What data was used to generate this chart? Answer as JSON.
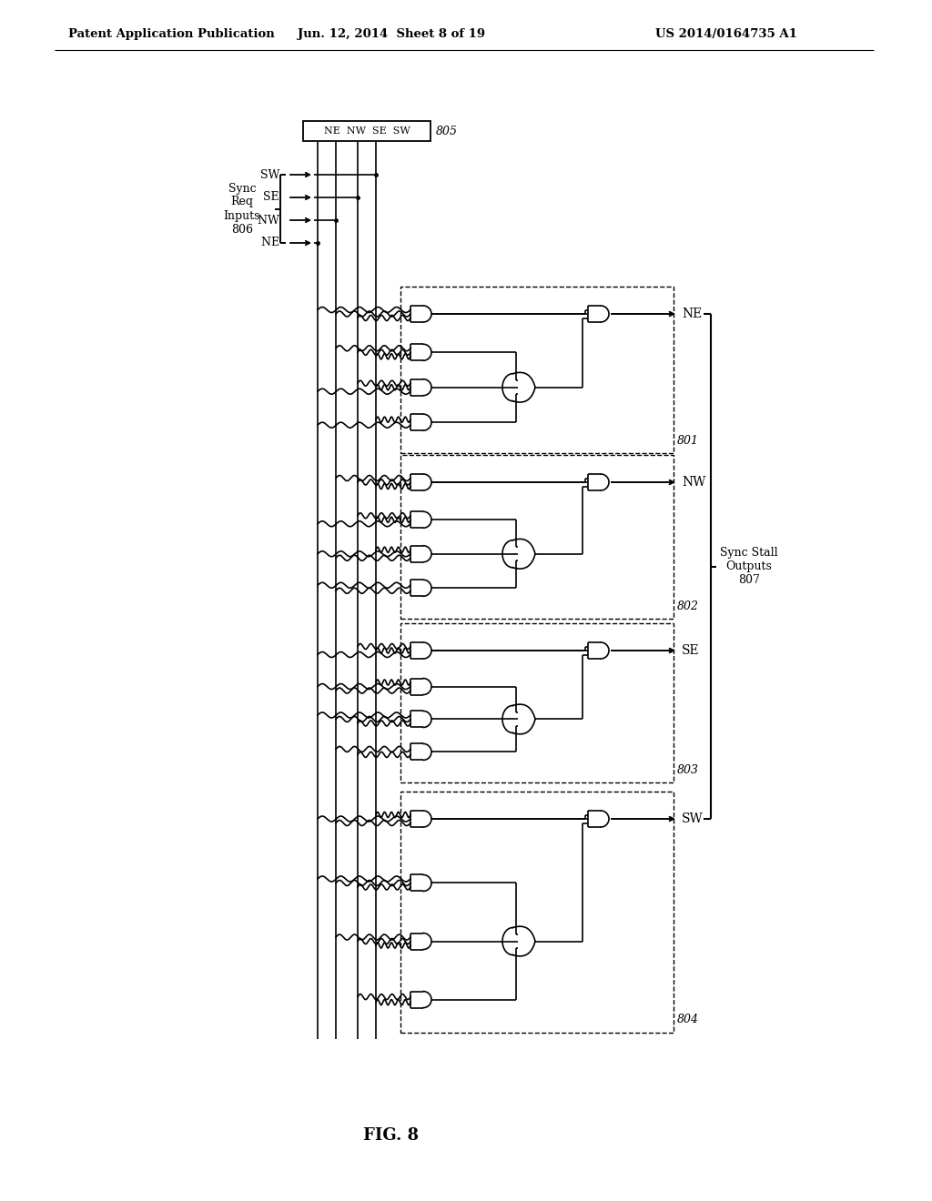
{
  "title_left": "Patent Application Publication",
  "title_center": "Jun. 12, 2014  Sheet 8 of 19",
  "title_right": "US 2014/0164735 A1",
  "fig_label": "FIG. 8",
  "bg_color": "#ffffff",
  "line_color": "#000000",
  "header_box_label": "NE  NW  SE  SW",
  "header_box_ref": "805",
  "inputs_label": "Sync\nReq\nInputs\n806",
  "input_signals": [
    "SW",
    "SE",
    "NW",
    "NE"
  ],
  "output_signals": [
    "NE",
    "NW",
    "SE",
    "SW"
  ],
  "block_refs": [
    "801",
    "802",
    "803",
    "804"
  ],
  "sync_stall_label": "Sync Stall\nOutputs\n807"
}
